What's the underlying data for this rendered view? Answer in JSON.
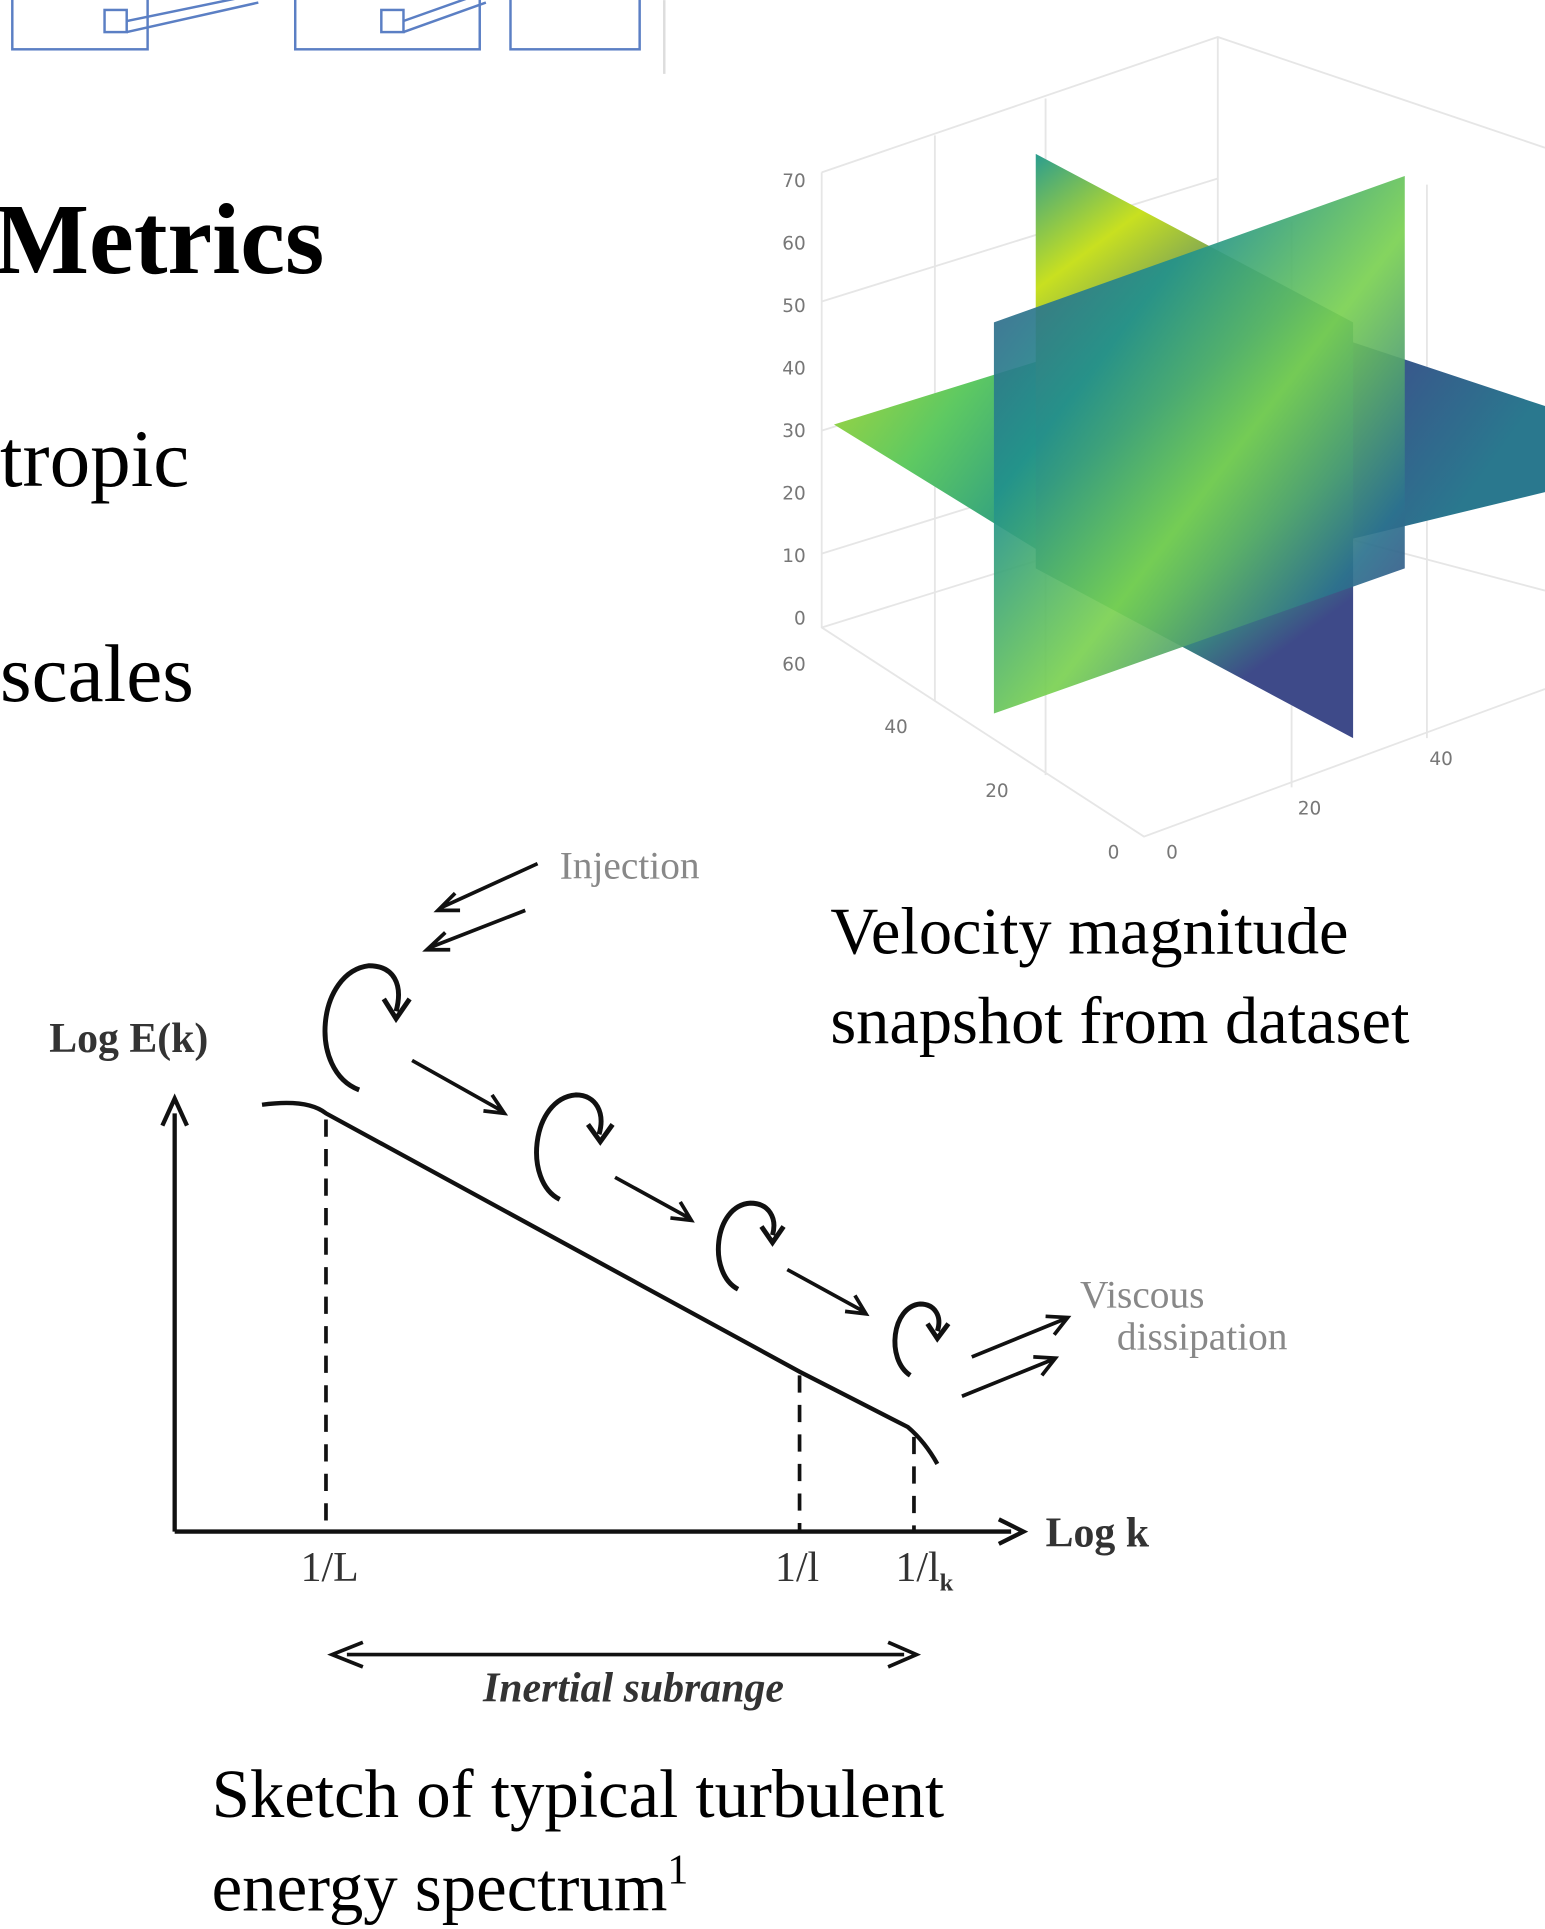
{
  "slide": {
    "title": "Metrics",
    "bullets": [
      "tropic",
      "scales"
    ]
  },
  "volume_plot": {
    "z_ticks": [
      70,
      60,
      50,
      40,
      30,
      20,
      10,
      0
    ],
    "y_ticks": [
      60,
      40,
      20,
      0
    ],
    "x_ticks": [
      0,
      20,
      40
    ],
    "caption": [
      "Velocity magnitude",
      "snapshot from dataset"
    ]
  },
  "spectrum_sketch": {
    "injection": "Injection",
    "y_label": "Log E(k)",
    "x_label": "Log k",
    "dissipation": [
      "Viscous",
      "dissipation"
    ],
    "ticks": [
      "1/L",
      "1/l",
      "1/l"
    ],
    "tick_subscript": "k",
    "range_label": "Inertial subrange",
    "caption": [
      "Sketch of typical turbulent",
      "energy spectrum"
    ],
    "footnote_mark": "1"
  }
}
